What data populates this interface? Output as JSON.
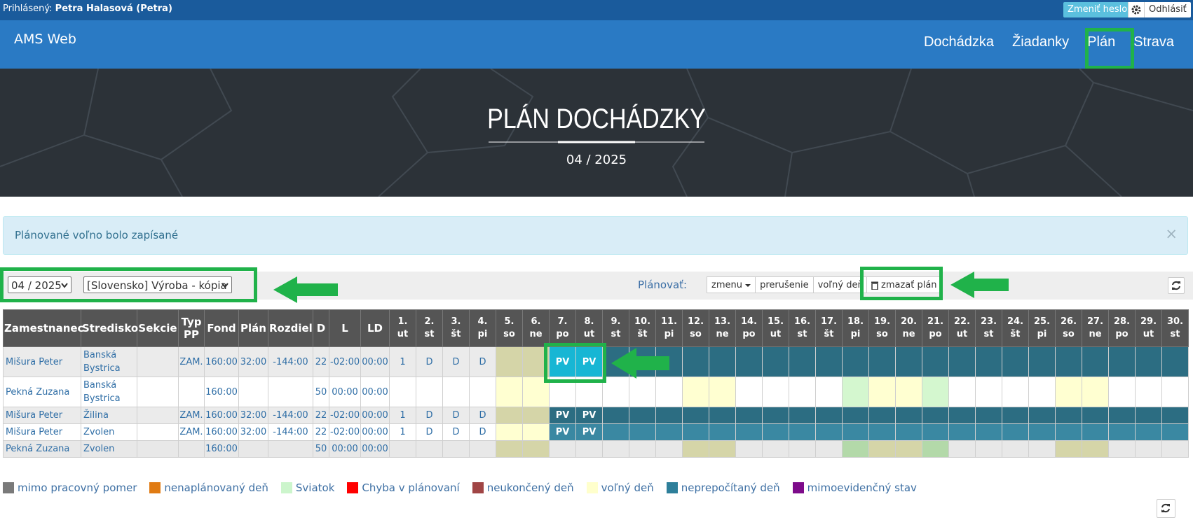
{
  "topbar": {
    "logged_label": "Prihlásený:",
    "user": "Petra Halasová (Petra)",
    "change_password": "Zmeniť heslo",
    "logout": "Odhlásiť"
  },
  "navbar": {
    "brand": "AMS Web",
    "items": [
      "Dochádzka",
      "Žiadanky",
      "Plán",
      "Strava"
    ]
  },
  "hero": {
    "title": "PLÁN DOCHÁDZKY",
    "period": "04 / 2025"
  },
  "alert": {
    "message": "Plánované voľno bolo zapísané",
    "close": "×"
  },
  "toolbar": {
    "month": "04 / 2025",
    "center": "[Slovensko] Výroba - kópia",
    "plan_label": "Plánovať:",
    "buttons": [
      "zmenu",
      "prerušenie",
      "voľný deň",
      "zmazať plán"
    ]
  },
  "table": {
    "columns": [
      "Zamestnanec",
      "Stredisko",
      "Sekcie",
      "Typ PP",
      "Fond",
      "Plán",
      "Rozdiel",
      "D",
      "L",
      "LD"
    ],
    "days": [
      {
        "n": "1.",
        "d": "ut"
      },
      {
        "n": "2.",
        "d": "st"
      },
      {
        "n": "3.",
        "d": "št"
      },
      {
        "n": "4.",
        "d": "pi"
      },
      {
        "n": "5.",
        "d": "so"
      },
      {
        "n": "6.",
        "d": "ne"
      },
      {
        "n": "7.",
        "d": "po"
      },
      {
        "n": "8.",
        "d": "ut"
      },
      {
        "n": "9.",
        "d": "st"
      },
      {
        "n": "10.",
        "d": "št"
      },
      {
        "n": "11.",
        "d": "pi"
      },
      {
        "n": "12.",
        "d": "so"
      },
      {
        "n": "13.",
        "d": "ne"
      },
      {
        "n": "14.",
        "d": "po"
      },
      {
        "n": "15.",
        "d": "ut"
      },
      {
        "n": "16.",
        "d": "st"
      },
      {
        "n": "17.",
        "d": "št"
      },
      {
        "n": "18.",
        "d": "pi"
      },
      {
        "n": "19.",
        "d": "so"
      },
      {
        "n": "20.",
        "d": "ne"
      },
      {
        "n": "21.",
        "d": "po"
      },
      {
        "n": "22.",
        "d": "ut"
      },
      {
        "n": "23.",
        "d": "st"
      },
      {
        "n": "24.",
        "d": "št"
      },
      {
        "n": "25.",
        "d": "pi"
      },
      {
        "n": "26.",
        "d": "so"
      },
      {
        "n": "27.",
        "d": "ne"
      },
      {
        "n": "28.",
        "d": "po"
      },
      {
        "n": "29.",
        "d": "ut"
      },
      {
        "n": "30.",
        "d": "st"
      }
    ],
    "rows": [
      {
        "cells": [
          "Mišura Peter",
          "Banská Bystrica",
          null,
          "ZAM.",
          "160:00",
          "32:00",
          "-144:00",
          "22",
          "-02:00",
          "00:00"
        ],
        "days": [
          "1",
          "D",
          "D",
          "D",
          null,
          null,
          "PV",
          "PV",
          null,
          null,
          null,
          null,
          null,
          null,
          null,
          null,
          null,
          null,
          null,
          null,
          null,
          null,
          null,
          null,
          null,
          null,
          null,
          null,
          null,
          null
        ],
        "background": "#ebebeb",
        "day_colors": [
          null,
          null,
          null,
          null,
          "#d5d5a8",
          "#d5d5a8",
          "#17b6d4",
          "#17b6d4",
          "#2c6d82",
          "#2c6d82",
          "#2c6d82",
          "#2c6d82",
          "#2c6d82",
          "#2c6d82",
          "#2c6d82",
          "#2c6d82",
          "#2c6d82",
          "#2c6d82",
          "#2c6d82",
          "#2c6d82",
          "#2c6d82",
          "#2c6d82",
          "#2c6d82",
          "#2c6d82",
          "#2c6d82",
          "#2c6d82",
          "#2c6d82",
          "#2c6d82",
          "#2c6d82",
          "#2c6d82"
        ]
      },
      {
        "cells": [
          "Pekná Zuzana",
          "Banská Bystrica",
          null,
          null,
          "160:00",
          null,
          null,
          "50",
          "00:00",
          "00:00"
        ],
        "days": [
          null,
          null,
          null,
          null,
          null,
          null,
          null,
          null,
          null,
          null,
          null,
          null,
          null,
          null,
          null,
          null,
          null,
          null,
          null,
          null,
          null,
          null,
          null,
          null,
          null,
          null,
          null,
          null,
          null,
          null
        ],
        "background": "#ffffff",
        "day_colors": [
          null,
          null,
          null,
          null,
          "#ffffd1",
          "#ffffd1",
          null,
          null,
          null,
          null,
          null,
          "#ffffd1",
          "#ffffd1",
          null,
          null,
          null,
          null,
          "#d4f7cf",
          "#ffffd1",
          "#ffffd1",
          "#d4f7cf",
          null,
          null,
          null,
          null,
          "#ffffd1",
          "#ffffd1",
          null,
          null,
          null
        ]
      },
      {
        "cells": [
          "Mišura Peter",
          "Žilina",
          null,
          "ZAM.",
          "160:00",
          "32:00",
          "-144:00",
          "22",
          "-02:00",
          "00:00"
        ],
        "days": [
          "1",
          "D",
          "D",
          "D",
          null,
          null,
          "PV",
          "PV",
          null,
          null,
          null,
          null,
          null,
          null,
          null,
          null,
          null,
          null,
          null,
          null,
          null,
          null,
          null,
          null,
          null,
          null,
          null,
          null,
          null,
          null
        ],
        "background": "#ebebeb",
        "day_colors": [
          null,
          null,
          null,
          null,
          "#d5d5a8",
          "#d5d5a8",
          "#2c6d82",
          "#2c6d82",
          "#2c6d82",
          "#2c6d82",
          "#2c6d82",
          "#2c6d82",
          "#2c6d82",
          "#2c6d82",
          "#2c6d82",
          "#2c6d82",
          "#2c6d82",
          "#2c6d82",
          "#2c6d82",
          "#2c6d82",
          "#2c6d82",
          "#2c6d82",
          "#2c6d82",
          "#2c6d82",
          "#2c6d82",
          "#2c6d82",
          "#2c6d82",
          "#2c6d82",
          "#2c6d82",
          "#2c6d82"
        ]
      },
      {
        "cells": [
          "Mišura Peter",
          "Zvolen",
          null,
          "ZAM.",
          "160:00",
          "32:00",
          "-144:00",
          "22",
          "-02:00",
          "00:00"
        ],
        "days": [
          "1",
          "D",
          "D",
          "D",
          null,
          null,
          "PV",
          "PV",
          null,
          null,
          null,
          null,
          null,
          null,
          null,
          null,
          null,
          null,
          null,
          null,
          null,
          null,
          null,
          null,
          null,
          null,
          null,
          null,
          null,
          null
        ],
        "background": "#ffffff",
        "day_colors": [
          null,
          null,
          null,
          null,
          "#ffffd1",
          "#ffffd1",
          "#3a88a2",
          "#3a88a2",
          "#3a88a2",
          "#3a88a2",
          "#3a88a2",
          "#3a88a2",
          "#3a88a2",
          "#3a88a2",
          "#3a88a2",
          "#3a88a2",
          "#3a88a2",
          "#3a88a2",
          "#3a88a2",
          "#3a88a2",
          "#3a88a2",
          "#3a88a2",
          "#3a88a2",
          "#3a88a2",
          "#3a88a2",
          "#3a88a2",
          "#3a88a2",
          "#3a88a2",
          "#3a88a2",
          "#3a88a2"
        ]
      },
      {
        "cells": [
          "Pekná Zuzana",
          "Zvolen",
          null,
          null,
          "160:00",
          null,
          null,
          "50",
          "00:00",
          "00:00"
        ],
        "days": [
          null,
          null,
          null,
          null,
          null,
          null,
          null,
          null,
          null,
          null,
          null,
          null,
          null,
          null,
          null,
          null,
          null,
          null,
          null,
          null,
          null,
          null,
          null,
          null,
          null,
          null,
          null,
          null,
          null,
          null
        ],
        "background": "#e8e8e8",
        "day_colors": [
          null,
          null,
          null,
          null,
          "#d5d5a8",
          "#d5d5a8",
          null,
          null,
          null,
          null,
          null,
          "#d5d5a8",
          "#d5d5a8",
          null,
          null,
          null,
          null,
          "#b3d9a9",
          "#d5d5a8",
          "#d5d5a8",
          "#b3d9a9",
          null,
          null,
          null,
          null,
          "#d5d5a8",
          "#d5d5a8",
          null,
          null,
          null
        ]
      }
    ]
  },
  "legend": [
    {
      "label": "mimo pracovný pomer",
      "color": "#7a7a7a"
    },
    {
      "label": "nenaplánovaný deň",
      "color": "#e07b13"
    },
    {
      "label": "Sviatok",
      "color": "#ccf5cc"
    },
    {
      "label": "Chyba v plánovaní",
      "color": "#ff0000"
    },
    {
      "label": "neukončený deň",
      "color": "#a04545"
    },
    {
      "label": "voľný deň",
      "color": "#ffffcc"
    },
    {
      "label": "neprepočítaný deň",
      "color": "#2e7f9a"
    },
    {
      "label": "mimoevidenčný stav",
      "color": "#7d0b8a"
    }
  ]
}
